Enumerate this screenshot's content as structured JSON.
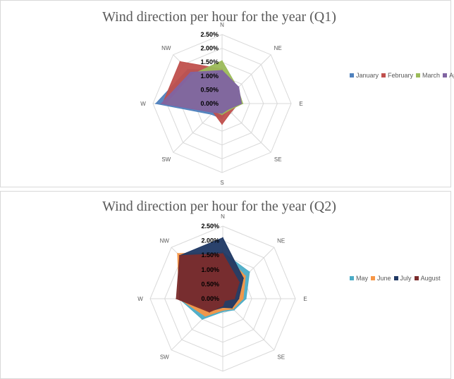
{
  "chart_data": [
    {
      "type": "radar",
      "title": "Wind direction per hour for the year (Q1)",
      "categories": [
        "N",
        "NE",
        "E",
        "SE",
        "S",
        "SW",
        "W",
        "NW"
      ],
      "ticks": [
        "0.00%",
        "0.50%",
        "1.00%",
        "1.50%",
        "2.00%",
        "2.50%"
      ],
      "ylim": [
        0,
        2.5
      ],
      "grid": true,
      "legend_position": "right",
      "series": [
        {
          "name": "January",
          "color": "#4F81BD",
          "values": [
            1.2,
            0.8,
            0.55,
            0.3,
            0.55,
            0.55,
            2.4,
            1.75
          ]
        },
        {
          "name": "February",
          "color": "#C0504D",
          "values": [
            1.25,
            0.75,
            0.6,
            0.45,
            0.75,
            0.45,
            2.15,
            2.15
          ]
        },
        {
          "name": "March",
          "color": "#9BBB59",
          "values": [
            1.55,
            0.8,
            0.75,
            0.35,
            0.4,
            0.4,
            2.0,
            1.5
          ]
        },
        {
          "name": "April",
          "color": "#8064A2",
          "values": [
            1.2,
            0.85,
            0.7,
            0.3,
            0.35,
            0.45,
            2.2,
            1.6
          ]
        }
      ]
    },
    {
      "type": "radar",
      "title": "Wind direction per hour for the year (Q2)",
      "categories": [
        "N",
        "NE",
        "E",
        "SE",
        "S",
        "SW",
        "W",
        "NW"
      ],
      "ticks": [
        "0.00%",
        "0.50%",
        "1.00%",
        "1.50%",
        "2.00%",
        "2.50%"
      ],
      "ylim": [
        0,
        2.5
      ],
      "grid": true,
      "legend_position": "right",
      "series": [
        {
          "name": "May",
          "color": "#4BACC6",
          "values": [
            1.6,
            1.3,
            0.8,
            0.55,
            0.45,
            1.0,
            1.5,
            1.9
          ]
        },
        {
          "name": "June",
          "color": "#F79646",
          "values": [
            1.6,
            1.1,
            0.7,
            0.5,
            0.4,
            0.85,
            1.5,
            2.2
          ]
        },
        {
          "name": "July",
          "color": "#1F3864",
          "values": [
            2.1,
            1.0,
            0.55,
            0.45,
            0.3,
            0.6,
            1.5,
            2.1
          ]
        },
        {
          "name": "August",
          "color": "#7B2C2C",
          "values": [
            1.55,
            0.8,
            0.4,
            0.1,
            0.25,
            0.65,
            1.6,
            2.1
          ]
        }
      ]
    }
  ]
}
